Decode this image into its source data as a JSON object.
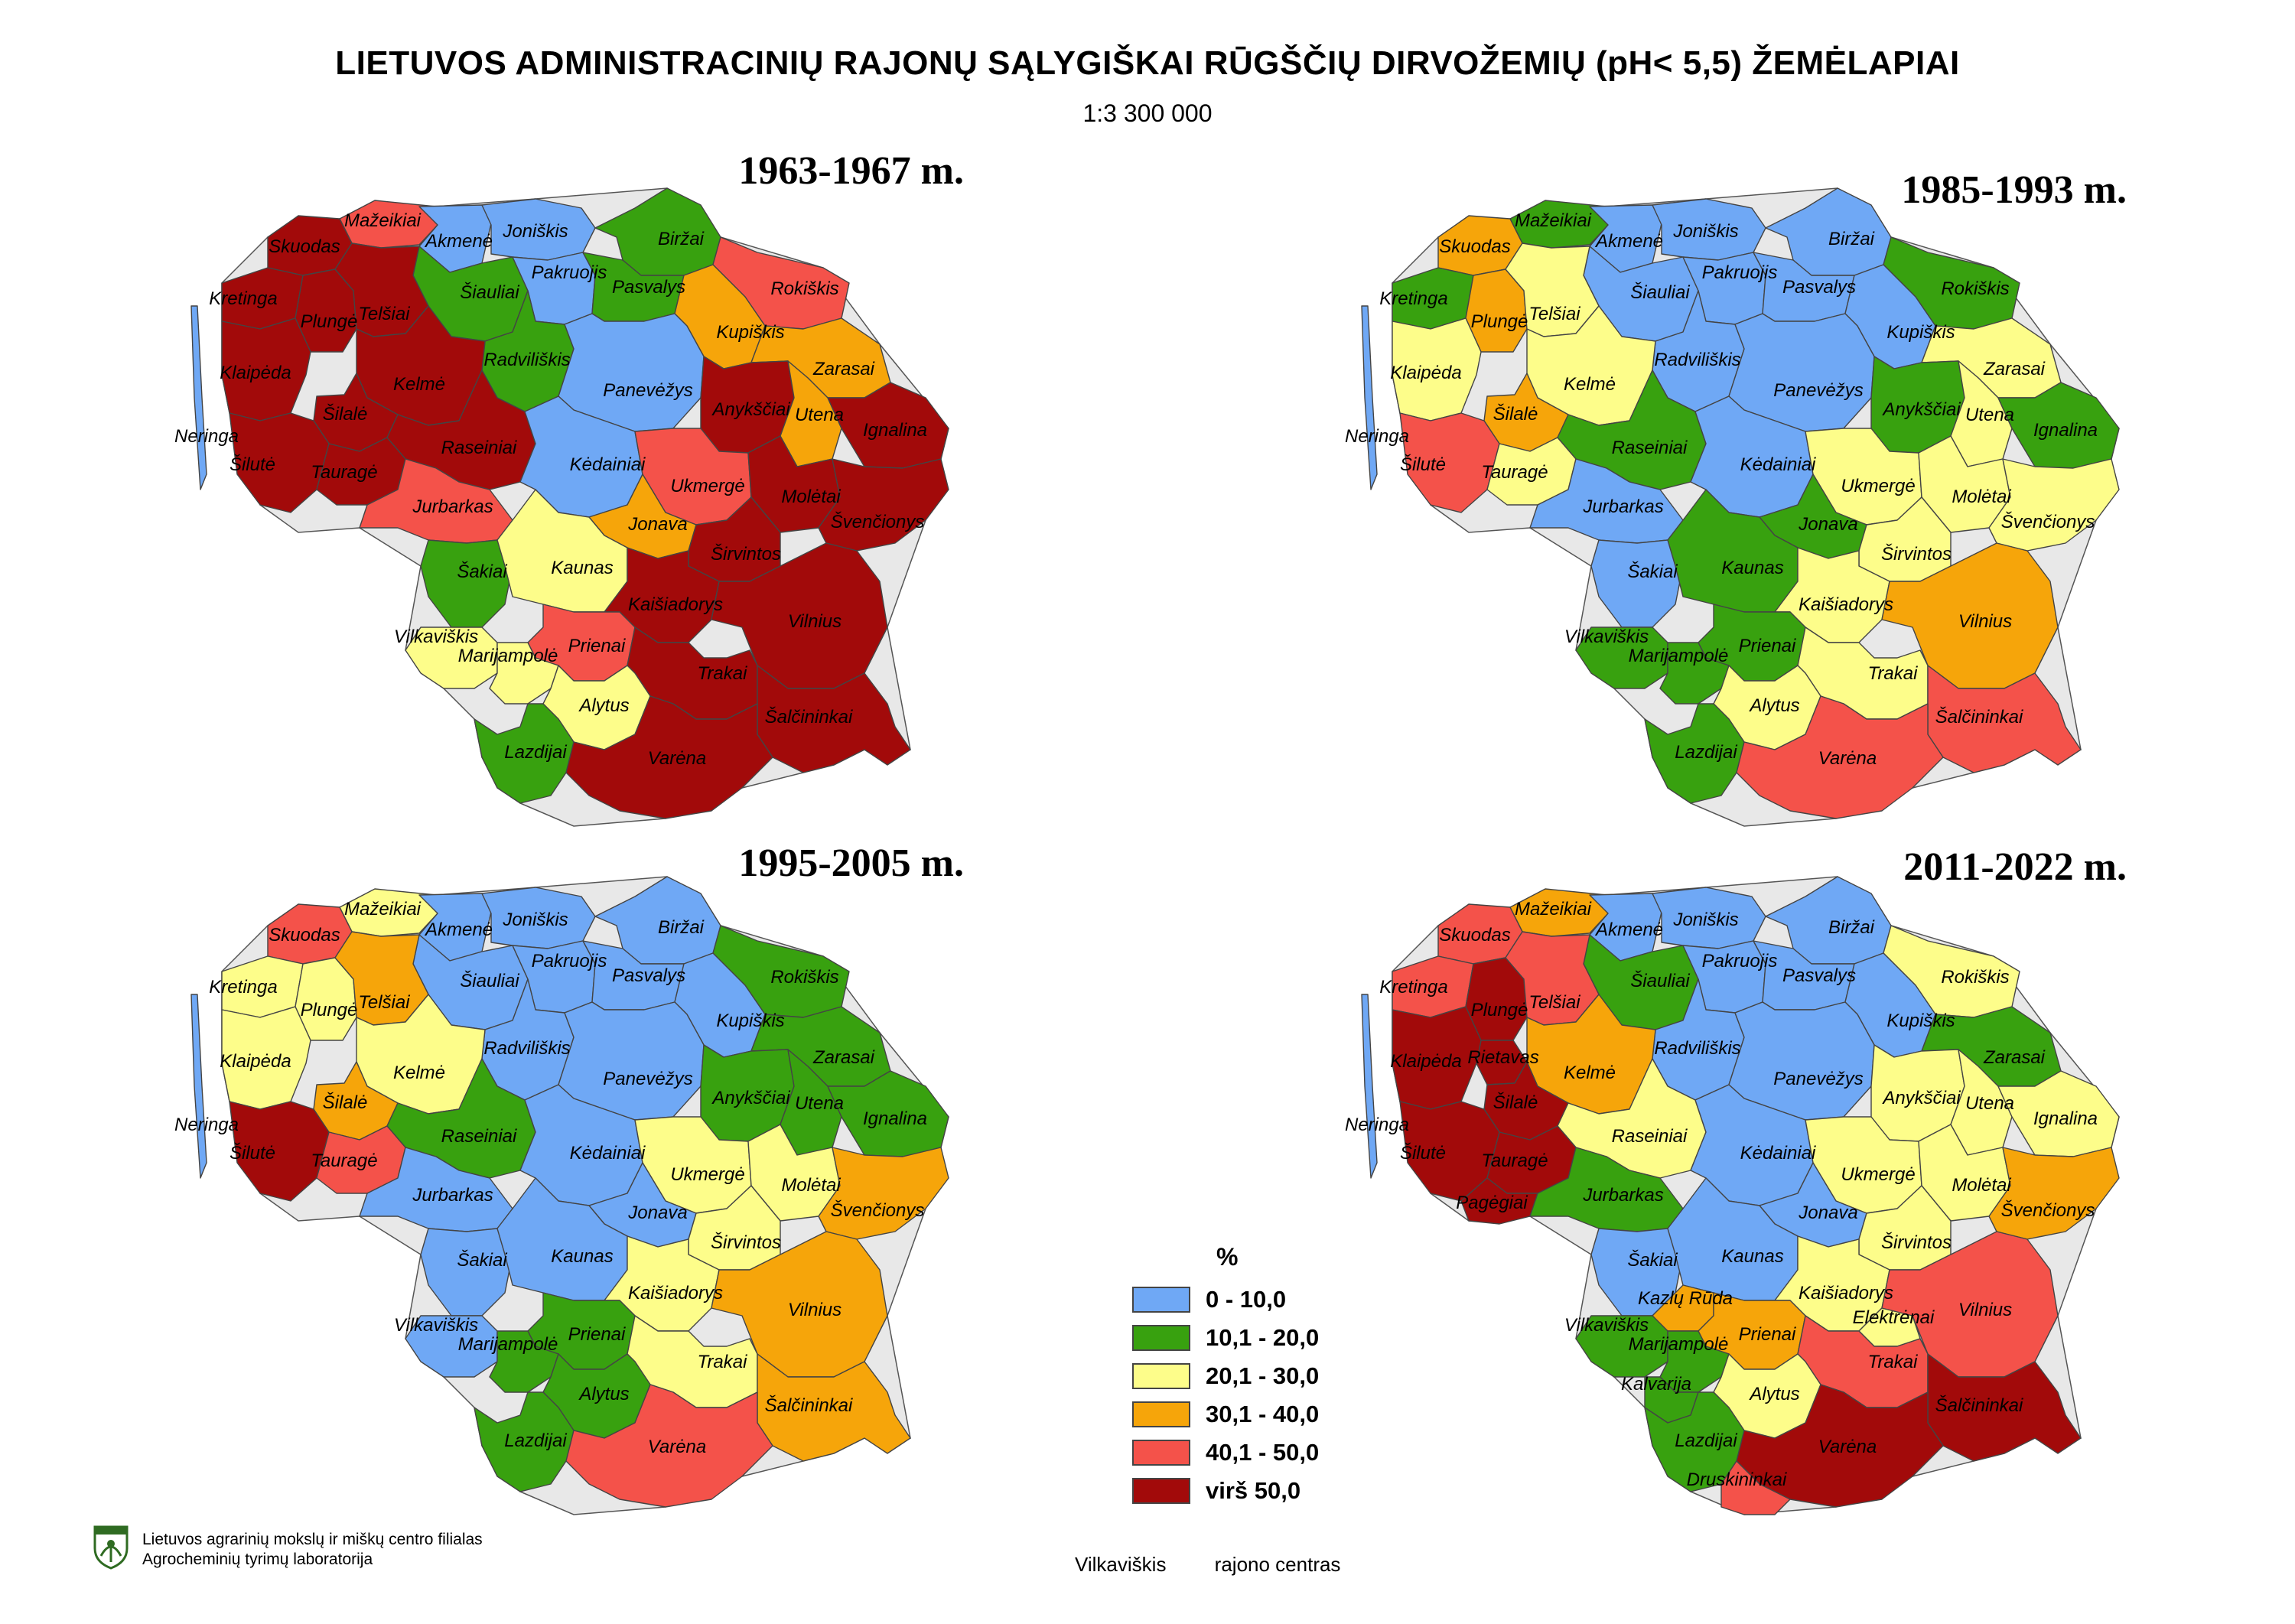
{
  "title": "LIETUVOS ADMINISTRACINIŲ RAJONŲ SĄLYGIŠKAI RŪGŠČIŲ DIRVOŽEMIŲ (pH< 5,5)  ŽEMĖLAPIAI",
  "scale": "1:3 300 000",
  "legend": {
    "title": "%",
    "classes": [
      {
        "label": "0 - 10,0",
        "color": "#6fa8f5"
      },
      {
        "label": "10,1 - 20,0",
        "color": "#38a10f"
      },
      {
        "label": "20,1 - 30,0",
        "color": "#fdfd8a"
      },
      {
        "label": "30,1 - 40,0",
        "color": "#f6a50a"
      },
      {
        "label": "40,1 - 50,0",
        "color": "#f4524a"
      },
      {
        "label": "virš 50,0",
        "color": "#a20a0a"
      }
    ]
  },
  "maps": [
    {
      "period": "1963-1967 m.",
      "districts": [
        {
          "name": "Mažeikiai",
          "class": 4
        },
        {
          "name": "Akmenė",
          "class": 0
        },
        {
          "name": "Joniškis",
          "class": 0
        },
        {
          "name": "Biržai",
          "class": 1
        },
        {
          "name": "Skuodas",
          "class": 5
        },
        {
          "name": "Šiauliai",
          "class": 1
        },
        {
          "name": "Pakruojis",
          "class": 0
        },
        {
          "name": "Pasvalys",
          "class": 1
        },
        {
          "name": "Rokiškis",
          "class": 4
        },
        {
          "name": "Kretinga",
          "class": 5
        },
        {
          "name": "Plungė",
          "class": 5
        },
        {
          "name": "Telšiai",
          "class": 5
        },
        {
          "name": "Kupiškis",
          "class": 3
        },
        {
          "name": "Radviliškis",
          "class": 1
        },
        {
          "name": "Zarasai",
          "class": 3
        },
        {
          "name": "Klaipėda",
          "class": 5
        },
        {
          "name": "Kelmė",
          "class": 5
        },
        {
          "name": "Panevėžys",
          "class": 0
        },
        {
          "name": "Anykščiai",
          "class": 5
        },
        {
          "name": "Utena",
          "class": 3
        },
        {
          "name": "Ignalina",
          "class": 5
        },
        {
          "name": "Šilalė",
          "class": 5
        },
        {
          "name": "Neringa",
          "class": 0
        },
        {
          "name": "Raseiniai",
          "class": 5
        },
        {
          "name": "Šilutė",
          "class": 5
        },
        {
          "name": "Tauragė",
          "class": 5
        },
        {
          "name": "Kėdainiai",
          "class": 0
        },
        {
          "name": "Ukmergė",
          "class": 4
        },
        {
          "name": "Molėtai",
          "class": 5
        },
        {
          "name": "Jurbarkas",
          "class": 4
        },
        {
          "name": "Jonava",
          "class": 3
        },
        {
          "name": "Švenčionys",
          "class": 5
        },
        {
          "name": "Širvintos",
          "class": 5
        },
        {
          "name": "Šakiai",
          "class": 1
        },
        {
          "name": "Kaunas",
          "class": 2
        },
        {
          "name": "Kaišiadorys",
          "class": 5
        },
        {
          "name": "Vilnius",
          "class": 5
        },
        {
          "name": "Vilkaviškis",
          "class": 2
        },
        {
          "name": "Prienai",
          "class": 4
        },
        {
          "name": "Trakai",
          "class": 5
        },
        {
          "name": "Marijampolė",
          "class": 2
        },
        {
          "name": "Alytus",
          "class": 2
        },
        {
          "name": "Šalčininkai",
          "class": 5
        },
        {
          "name": "Lazdijai",
          "class": 1
        },
        {
          "name": "Varėna",
          "class": 5
        }
      ]
    },
    {
      "period": "1985-1993 m.",
      "districts": [
        {
          "name": "Mažeikiai",
          "class": 1
        },
        {
          "name": "Akmenė",
          "class": 0
        },
        {
          "name": "Joniškis",
          "class": 0
        },
        {
          "name": "Biržai",
          "class": 0
        },
        {
          "name": "Skuodas",
          "class": 3
        },
        {
          "name": "Šiauliai",
          "class": 0
        },
        {
          "name": "Pakruojis",
          "class": 0
        },
        {
          "name": "Pasvalys",
          "class": 0
        },
        {
          "name": "Rokiškis",
          "class": 1
        },
        {
          "name": "Kretinga",
          "class": 1
        },
        {
          "name": "Plungė",
          "class": 3
        },
        {
          "name": "Telšiai",
          "class": 2
        },
        {
          "name": "Kupiškis",
          "class": 0
        },
        {
          "name": "Radviliškis",
          "class": 0
        },
        {
          "name": "Zarasai",
          "class": 2
        },
        {
          "name": "Klaipėda",
          "class": 2
        },
        {
          "name": "Kelmė",
          "class": 2
        },
        {
          "name": "Panevėžys",
          "class": 0
        },
        {
          "name": "Anykščiai",
          "class": 1
        },
        {
          "name": "Utena",
          "class": 2
        },
        {
          "name": "Ignalina",
          "class": 1
        },
        {
          "name": "Šilalė",
          "class": 3
        },
        {
          "name": "Neringa",
          "class": 0
        },
        {
          "name": "Raseiniai",
          "class": 1
        },
        {
          "name": "Šilutė",
          "class": 4
        },
        {
          "name": "Tauragė",
          "class": 2
        },
        {
          "name": "Kėdainiai",
          "class": 0
        },
        {
          "name": "Ukmergė",
          "class": 2
        },
        {
          "name": "Molėtai",
          "class": 2
        },
        {
          "name": "Jurbarkas",
          "class": 0
        },
        {
          "name": "Jonava",
          "class": 1
        },
        {
          "name": "Švenčionys",
          "class": 2
        },
        {
          "name": "Širvintos",
          "class": 2
        },
        {
          "name": "Šakiai",
          "class": 0
        },
        {
          "name": "Kaunas",
          "class": 1
        },
        {
          "name": "Kaišiadorys",
          "class": 2
        },
        {
          "name": "Vilnius",
          "class": 3
        },
        {
          "name": "Vilkaviškis",
          "class": 1
        },
        {
          "name": "Prienai",
          "class": 1
        },
        {
          "name": "Trakai",
          "class": 2
        },
        {
          "name": "Marijampolė",
          "class": 1
        },
        {
          "name": "Alytus",
          "class": 2
        },
        {
          "name": "Šalčininkai",
          "class": 4
        },
        {
          "name": "Lazdijai",
          "class": 1
        },
        {
          "name": "Varėna",
          "class": 4
        }
      ]
    },
    {
      "period": "1995-2005 m.",
      "districts": [
        {
          "name": "Mažeikiai",
          "class": 2
        },
        {
          "name": "Akmenė",
          "class": 0
        },
        {
          "name": "Joniškis",
          "class": 0
        },
        {
          "name": "Biržai",
          "class": 0
        },
        {
          "name": "Skuodas",
          "class": 4
        },
        {
          "name": "Šiauliai",
          "class": 0
        },
        {
          "name": "Pakruojis",
          "class": 0
        },
        {
          "name": "Pasvalys",
          "class": 0
        },
        {
          "name": "Rokiškis",
          "class": 1
        },
        {
          "name": "Kretinga",
          "class": 2
        },
        {
          "name": "Plungė",
          "class": 2
        },
        {
          "name": "Telšiai",
          "class": 3
        },
        {
          "name": "Kupiškis",
          "class": 0
        },
        {
          "name": "Radviliškis",
          "class": 0
        },
        {
          "name": "Zarasai",
          "class": 1
        },
        {
          "name": "Klaipėda",
          "class": 2
        },
        {
          "name": "Kelmė",
          "class": 2
        },
        {
          "name": "Panevėžys",
          "class": 0
        },
        {
          "name": "Anykščiai",
          "class": 1
        },
        {
          "name": "Utena",
          "class": 1
        },
        {
          "name": "Ignalina",
          "class": 1
        },
        {
          "name": "Šilalė",
          "class": 3
        },
        {
          "name": "Neringa",
          "class": 0
        },
        {
          "name": "Raseiniai",
          "class": 1
        },
        {
          "name": "Šilutė",
          "class": 5
        },
        {
          "name": "Tauragė",
          "class": 4
        },
        {
          "name": "Kėdainiai",
          "class": 0
        },
        {
          "name": "Ukmergė",
          "class": 2
        },
        {
          "name": "Molėtai",
          "class": 2
        },
        {
          "name": "Jurbarkas",
          "class": 0
        },
        {
          "name": "Jonava",
          "class": 0
        },
        {
          "name": "Švenčionys",
          "class": 3
        },
        {
          "name": "Širvintos",
          "class": 2
        },
        {
          "name": "Šakiai",
          "class": 0
        },
        {
          "name": "Kaunas",
          "class": 0
        },
        {
          "name": "Kaišiadorys",
          "class": 2
        },
        {
          "name": "Vilnius",
          "class": 3
        },
        {
          "name": "Vilkaviškis",
          "class": 0
        },
        {
          "name": "Prienai",
          "class": 1
        },
        {
          "name": "Trakai",
          "class": 2
        },
        {
          "name": "Marijampolė",
          "class": 1
        },
        {
          "name": "Alytus",
          "class": 1
        },
        {
          "name": "Šalčininkai",
          "class": 3
        },
        {
          "name": "Lazdijai",
          "class": 1
        },
        {
          "name": "Varėna",
          "class": 4
        }
      ]
    },
    {
      "period": "2011-2022 m.",
      "districts": [
        {
          "name": "Mažeikiai",
          "class": 3
        },
        {
          "name": "Akmenė",
          "class": 0
        },
        {
          "name": "Joniškis",
          "class": 0
        },
        {
          "name": "Biržai",
          "class": 0
        },
        {
          "name": "Skuodas",
          "class": 4
        },
        {
          "name": "Šiauliai",
          "class": 1
        },
        {
          "name": "Pakruojis",
          "class": 0
        },
        {
          "name": "Pasvalys",
          "class": 0
        },
        {
          "name": "Rokiškis",
          "class": 2
        },
        {
          "name": "Kretinga",
          "class": 4
        },
        {
          "name": "Plungė",
          "class": 5
        },
        {
          "name": "Telšiai",
          "class": 4
        },
        {
          "name": "Kupiškis",
          "class": 0
        },
        {
          "name": "Radviliškis",
          "class": 0
        },
        {
          "name": "Zarasai",
          "class": 1
        },
        {
          "name": "Rietavas",
          "class": 5
        },
        {
          "name": "Klaipėda",
          "class": 5
        },
        {
          "name": "Kelmė",
          "class": 3
        },
        {
          "name": "Panevėžys",
          "class": 0
        },
        {
          "name": "Anykščiai",
          "class": 2
        },
        {
          "name": "Utena",
          "class": 2
        },
        {
          "name": "Ignalina",
          "class": 2
        },
        {
          "name": "Šilalė",
          "class": 5
        },
        {
          "name": "Neringa",
          "class": 0
        },
        {
          "name": "Raseiniai",
          "class": 2
        },
        {
          "name": "Šilutė",
          "class": 5
        },
        {
          "name": "Tauragė",
          "class": 5
        },
        {
          "name": "Kėdainiai",
          "class": 0
        },
        {
          "name": "Ukmergė",
          "class": 2
        },
        {
          "name": "Molėtai",
          "class": 2
        },
        {
          "name": "Pagėgiai",
          "class": 5
        },
        {
          "name": "Jurbarkas",
          "class": 1
        },
        {
          "name": "Jonava",
          "class": 0
        },
        {
          "name": "Švenčionys",
          "class": 3
        },
        {
          "name": "Širvintos",
          "class": 2
        },
        {
          "name": "Šakiai",
          "class": 0
        },
        {
          "name": "Kaunas",
          "class": 0
        },
        {
          "name": "Kaišiadorys",
          "class": 2
        },
        {
          "name": "Kazlų Rūda",
          "class": 3
        },
        {
          "name": "Elektrėnai",
          "class": 2
        },
        {
          "name": "Vilnius",
          "class": 4
        },
        {
          "name": "Vilkaviškis",
          "class": 1
        },
        {
          "name": "Prienai",
          "class": 3
        },
        {
          "name": "Trakai",
          "class": 4
        },
        {
          "name": "Marijampolė",
          "class": 1
        },
        {
          "name": "Alytus",
          "class": 2
        },
        {
          "name": "Kalvarija",
          "class": 1
        },
        {
          "name": "Šalčininkai",
          "class": 5
        },
        {
          "name": "Lazdijai",
          "class": 1
        },
        {
          "name": "Varėna",
          "class": 5
        },
        {
          "name": "Druskininkai",
          "class": 4
        }
      ]
    }
  ],
  "footer": {
    "org_line1": "Lietuvos agrarinių mokslų ir miškų centro filialas",
    "org_line2": "Agrocheminių tyrimų laboratorija",
    "center_example": "Vilkaviškis",
    "center_label": "rajono centras"
  }
}
